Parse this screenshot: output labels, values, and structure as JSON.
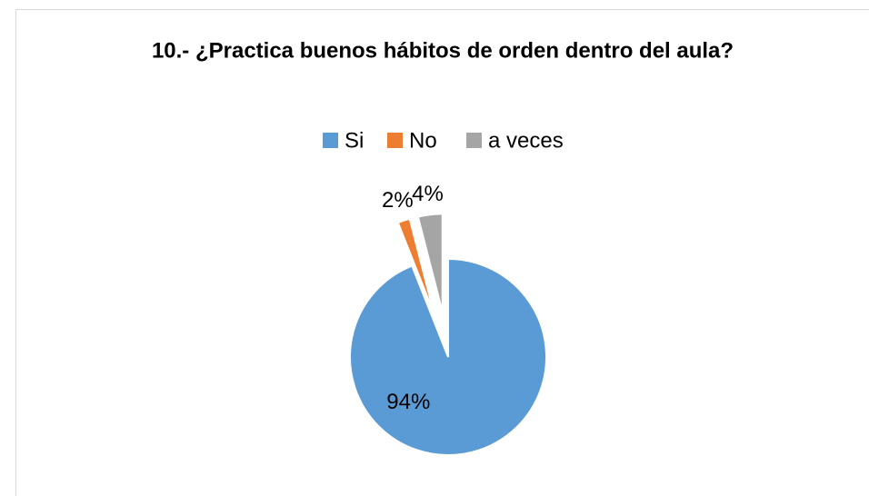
{
  "chart_data": {
    "type": "pie",
    "title": "10.- ¿Practica buenos hábitos de orden dentro del aula?",
    "categories": [
      "Si",
      "No",
      "a veces"
    ],
    "values": [
      94,
      2,
      4
    ],
    "value_labels": [
      "94%",
      "2%",
      "4%"
    ],
    "colors": [
      "#5b9bd5",
      "#ed7d31",
      "#a5a5a5"
    ],
    "legend": "top"
  }
}
